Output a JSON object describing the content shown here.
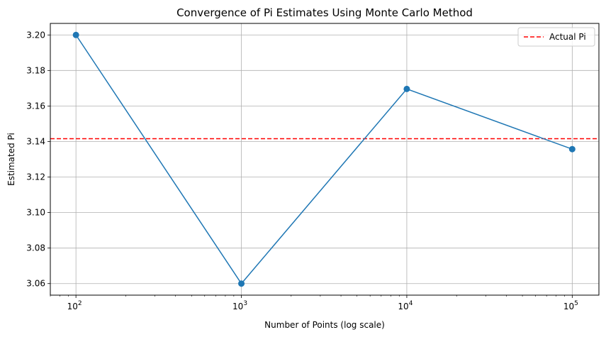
{
  "chart_data": {
    "type": "line",
    "title": "Convergence of Pi Estimates Using Monte Carlo Method",
    "xlabel": "Number of Points (log scale)",
    "ylabel": "Estimated Pi",
    "xscale": "log",
    "xlim": [
      70,
      145000
    ],
    "ylim": [
      3.0535,
      3.2065
    ],
    "x_ticks": [
      {
        "value": 100,
        "base": "10",
        "exp": "2"
      },
      {
        "value": 1000,
        "base": "10",
        "exp": "3"
      },
      {
        "value": 10000,
        "base": "10",
        "exp": "4"
      },
      {
        "value": 100000,
        "base": "10",
        "exp": "5"
      }
    ],
    "y_ticks": [
      {
        "value": 3.06,
        "label": "3.06"
      },
      {
        "value": 3.08,
        "label": "3.08"
      },
      {
        "value": 3.1,
        "label": "3.10"
      },
      {
        "value": 3.12,
        "label": "3.12"
      },
      {
        "value": 3.14,
        "label": "3.14"
      },
      {
        "value": 3.16,
        "label": "3.16"
      },
      {
        "value": 3.18,
        "label": "3.18"
      },
      {
        "value": 3.2,
        "label": "3.20"
      }
    ],
    "series": [
      {
        "x": [
          100,
          1000,
          10000,
          100000
        ],
        "y": [
          3.2,
          3.06,
          3.1696,
          3.1357
        ],
        "color": "#1f77b4",
        "marker": "circle"
      }
    ],
    "reference_lines": [
      {
        "name": "Actual Pi",
        "y": 3.14159,
        "color": "#ff0000",
        "style": "dashed"
      }
    ],
    "grid": true,
    "legend": {
      "position": "top-right",
      "entries": [
        "Actual Pi"
      ]
    }
  }
}
